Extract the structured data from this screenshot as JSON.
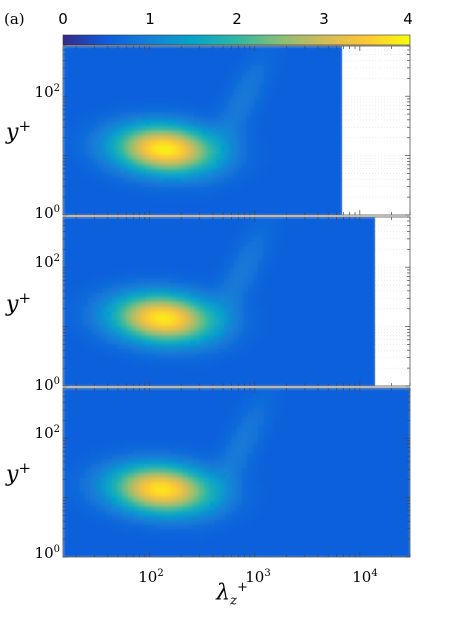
{
  "panel_label": "(a)",
  "colorbar": {
    "ticks": [
      "0",
      "1",
      "2",
      "3",
      "4"
    ],
    "range": [
      0,
      4
    ],
    "colormap": "parula",
    "colors": [
      "#352a87",
      "#0f5cdd",
      "#1481d6",
      "#06a4ca",
      "#2eb7a4",
      "#87bf77",
      "#d1bb59",
      "#fec832",
      "#f9fb0e"
    ]
  },
  "chart_data": [
    {
      "type": "heatmap",
      "panel": 1,
      "xlabel": "",
      "ylabel_base": "y",
      "ylabel_sup": "+",
      "xscale": "log",
      "yscale": "log",
      "xlim": [
        15,
        30000
      ],
      "ylim": [
        1,
        700
      ],
      "data_x_max": 6800,
      "peak": {
        "lambda_z": 140,
        "y": 13,
        "value": 3.9
      },
      "ytick_labels": [
        {
          "base": "10",
          "exp": "0"
        },
        {
          "base": "10",
          "exp": "2"
        }
      ]
    },
    {
      "type": "heatmap",
      "panel": 2,
      "xlabel": "",
      "ylabel_base": "y",
      "ylabel_sup": "+",
      "xscale": "log",
      "yscale": "log",
      "xlim": [
        15,
        30000
      ],
      "ylim": [
        1,
        700
      ],
      "data_x_max": 14000,
      "peak": {
        "lambda_z": 135,
        "y": 14,
        "value": 3.85
      },
      "ytick_labels": [
        {
          "base": "10",
          "exp": "0"
        },
        {
          "base": "10",
          "exp": "2"
        }
      ]
    },
    {
      "type": "heatmap",
      "panel": 3,
      "xlabel_base": "λ",
      "xlabel_sub": "z",
      "xlabel_sup": "+",
      "ylabel_base": "y",
      "ylabel_sup": "+",
      "xscale": "log",
      "yscale": "log",
      "xlim": [
        15,
        30000
      ],
      "ylim": [
        1,
        700
      ],
      "data_x_max": 30000,
      "peak": {
        "lambda_z": 130,
        "y": 14,
        "value": 3.8
      },
      "ytick_labels": [
        {
          "base": "10",
          "exp": "0"
        },
        {
          "base": "10",
          "exp": "2"
        }
      ],
      "xtick_labels": [
        {
          "base": "10",
          "exp": "2"
        },
        {
          "base": "10",
          "exp": "3"
        },
        {
          "base": "10",
          "exp": "4"
        }
      ]
    }
  ]
}
